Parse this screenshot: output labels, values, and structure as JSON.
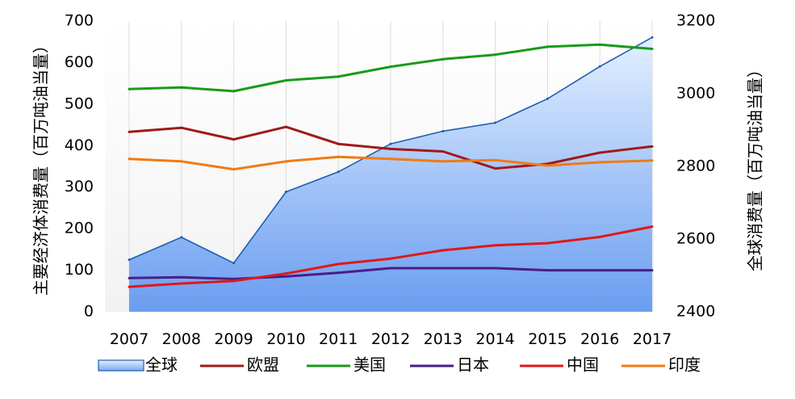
{
  "chart_data": {
    "type": "line",
    "categories": [
      "2007",
      "2008",
      "2009",
      "2010",
      "2011",
      "2012",
      "2013",
      "2014",
      "2015",
      "2016",
      "2017"
    ],
    "left_axis": {
      "label": "主要经济体消费量（百万吨油当量）",
      "ylim": [
        0,
        700
      ],
      "ticks": [
        "0",
        "100",
        "200",
        "300",
        "400",
        "500",
        "600",
        "700"
      ]
    },
    "right_axis": {
      "label": "全球消费量（百万吨油当量）",
      "ylim": [
        2400,
        3200
      ],
      "ticks": [
        "2400",
        "2600",
        "2800",
        "3000",
        "3200"
      ]
    },
    "series": [
      {
        "name": "全球",
        "kind": "area",
        "axis": "right",
        "color": "#1f5fb0",
        "values": [
          2543,
          2605,
          2534,
          2730,
          2785,
          2862,
          2897,
          2920,
          2986,
          3075,
          3155
        ]
      },
      {
        "name": "欧盟",
        "kind": "line",
        "axis": "left",
        "color": "#a01a1a",
        "values": [
          433,
          443,
          415,
          445,
          404,
          392,
          386,
          345,
          356,
          383,
          398
        ]
      },
      {
        "name": "美国",
        "kind": "line",
        "axis": "left",
        "color": "#1a9a1a",
        "values": [
          536,
          540,
          531,
          557,
          566,
          590,
          608,
          619,
          638,
          643,
          633
        ]
      },
      {
        "name": "日本",
        "kind": "line",
        "axis": "left",
        "color": "#4b1d86",
        "values": [
          81,
          83,
          79,
          85,
          94,
          105,
          105,
          105,
          100,
          100,
          100
        ]
      },
      {
        "name": "中国",
        "kind": "line",
        "axis": "left",
        "color": "#e01818",
        "values": [
          60,
          68,
          74,
          92,
          115,
          128,
          148,
          160,
          165,
          180,
          205
        ]
      },
      {
        "name": "印度",
        "kind": "line",
        "axis": "left",
        "color": "#f07a14",
        "values": [
          368,
          362,
          343,
          362,
          373,
          368,
          362,
          365,
          352,
          360,
          364
        ]
      }
    ],
    "grid": "vertical",
    "legend": "bottom"
  }
}
